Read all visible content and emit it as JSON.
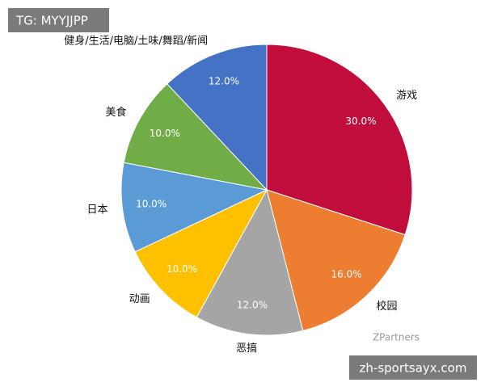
{
  "chart_data": {
    "type": "pie",
    "categories": [
      "游戏",
      "校园",
      "恶搞",
      "动画",
      "日本",
      "美食",
      "健身/生活/电脑/土味/舞蹈/新闻"
    ],
    "values": [
      30,
      16,
      12,
      10,
      10,
      10,
      12
    ],
    "value_labels": [
      "30.0%",
      "16.0%",
      "12.0%",
      "10.0%",
      "10.0%",
      "10.0%",
      "12.0%"
    ],
    "colors": [
      "#c00d3b",
      "#ed7d31",
      "#a5a5a5",
      "#ffc000",
      "#5b9bd5",
      "#70ad47",
      "#4472c4"
    ]
  },
  "watermarks": {
    "top_left": "TG: MYYJJPP",
    "logo": "ZPartners",
    "bottom_right": "zh-sportsayx.com"
  }
}
